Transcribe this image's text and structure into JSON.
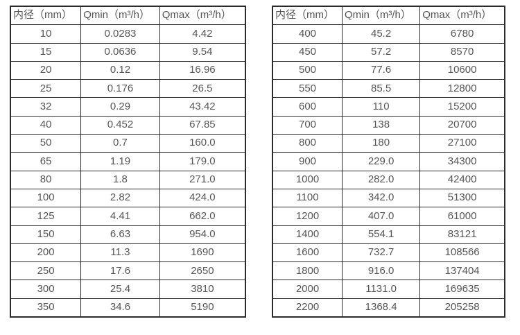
{
  "colors": {
    "border": "#2b2b2b",
    "text": "#555555",
    "background": "#ffffff"
  },
  "tables": [
    {
      "name": "small-diameter-flow-table",
      "headers": [
        "内径（mm）",
        "Qmin（m³/h）",
        "Qmax（m³/h）"
      ],
      "rows": [
        [
          "10",
          "0.0283",
          "4.42"
        ],
        [
          "15",
          "0.0636",
          "9.54"
        ],
        [
          "20",
          "0.12",
          "16.96"
        ],
        [
          "25",
          "0.176",
          "26.5"
        ],
        [
          "32",
          "0.29",
          "43.42"
        ],
        [
          "40",
          "0.452",
          "67.85"
        ],
        [
          "50",
          "0.7",
          "160.0"
        ],
        [
          "65",
          "1.19",
          "179.0"
        ],
        [
          "80",
          "1.8",
          "271.0"
        ],
        [
          "100",
          "2.82",
          "424.0"
        ],
        [
          "125",
          "4.41",
          "662.0"
        ],
        [
          "150",
          "6.63",
          "954.0"
        ],
        [
          "200",
          "11.3",
          "1690"
        ],
        [
          "250",
          "17.6",
          "2650"
        ],
        [
          "300",
          "25.4",
          "3810"
        ],
        [
          "350",
          "34.6",
          "5190"
        ]
      ]
    },
    {
      "name": "large-diameter-flow-table",
      "headers": [
        "内径（mm）",
        "Qmin（m³/h）",
        "Qmax（m³/h）"
      ],
      "rows": [
        [
          "400",
          "45.2",
          "6780"
        ],
        [
          "450",
          "57.2",
          "8570"
        ],
        [
          "500",
          "77.6",
          "10600"
        ],
        [
          "550",
          "85.5",
          "12800"
        ],
        [
          "600",
          "110",
          "15200"
        ],
        [
          "700",
          "138",
          "20700"
        ],
        [
          "800",
          "180",
          "27100"
        ],
        [
          "900",
          "229.0",
          "34300"
        ],
        [
          "1000",
          "282.0",
          "42400"
        ],
        [
          "1100",
          "342.0",
          "51300"
        ],
        [
          "1200",
          "407.0",
          "61000"
        ],
        [
          "1400",
          "554.1",
          "83121"
        ],
        [
          "1600",
          "732.7",
          "108566"
        ],
        [
          "1800",
          "916.0",
          "137404"
        ],
        [
          "2000",
          "1131.0",
          "169635"
        ],
        [
          "2200",
          "1368.4",
          "205258"
        ]
      ]
    }
  ]
}
